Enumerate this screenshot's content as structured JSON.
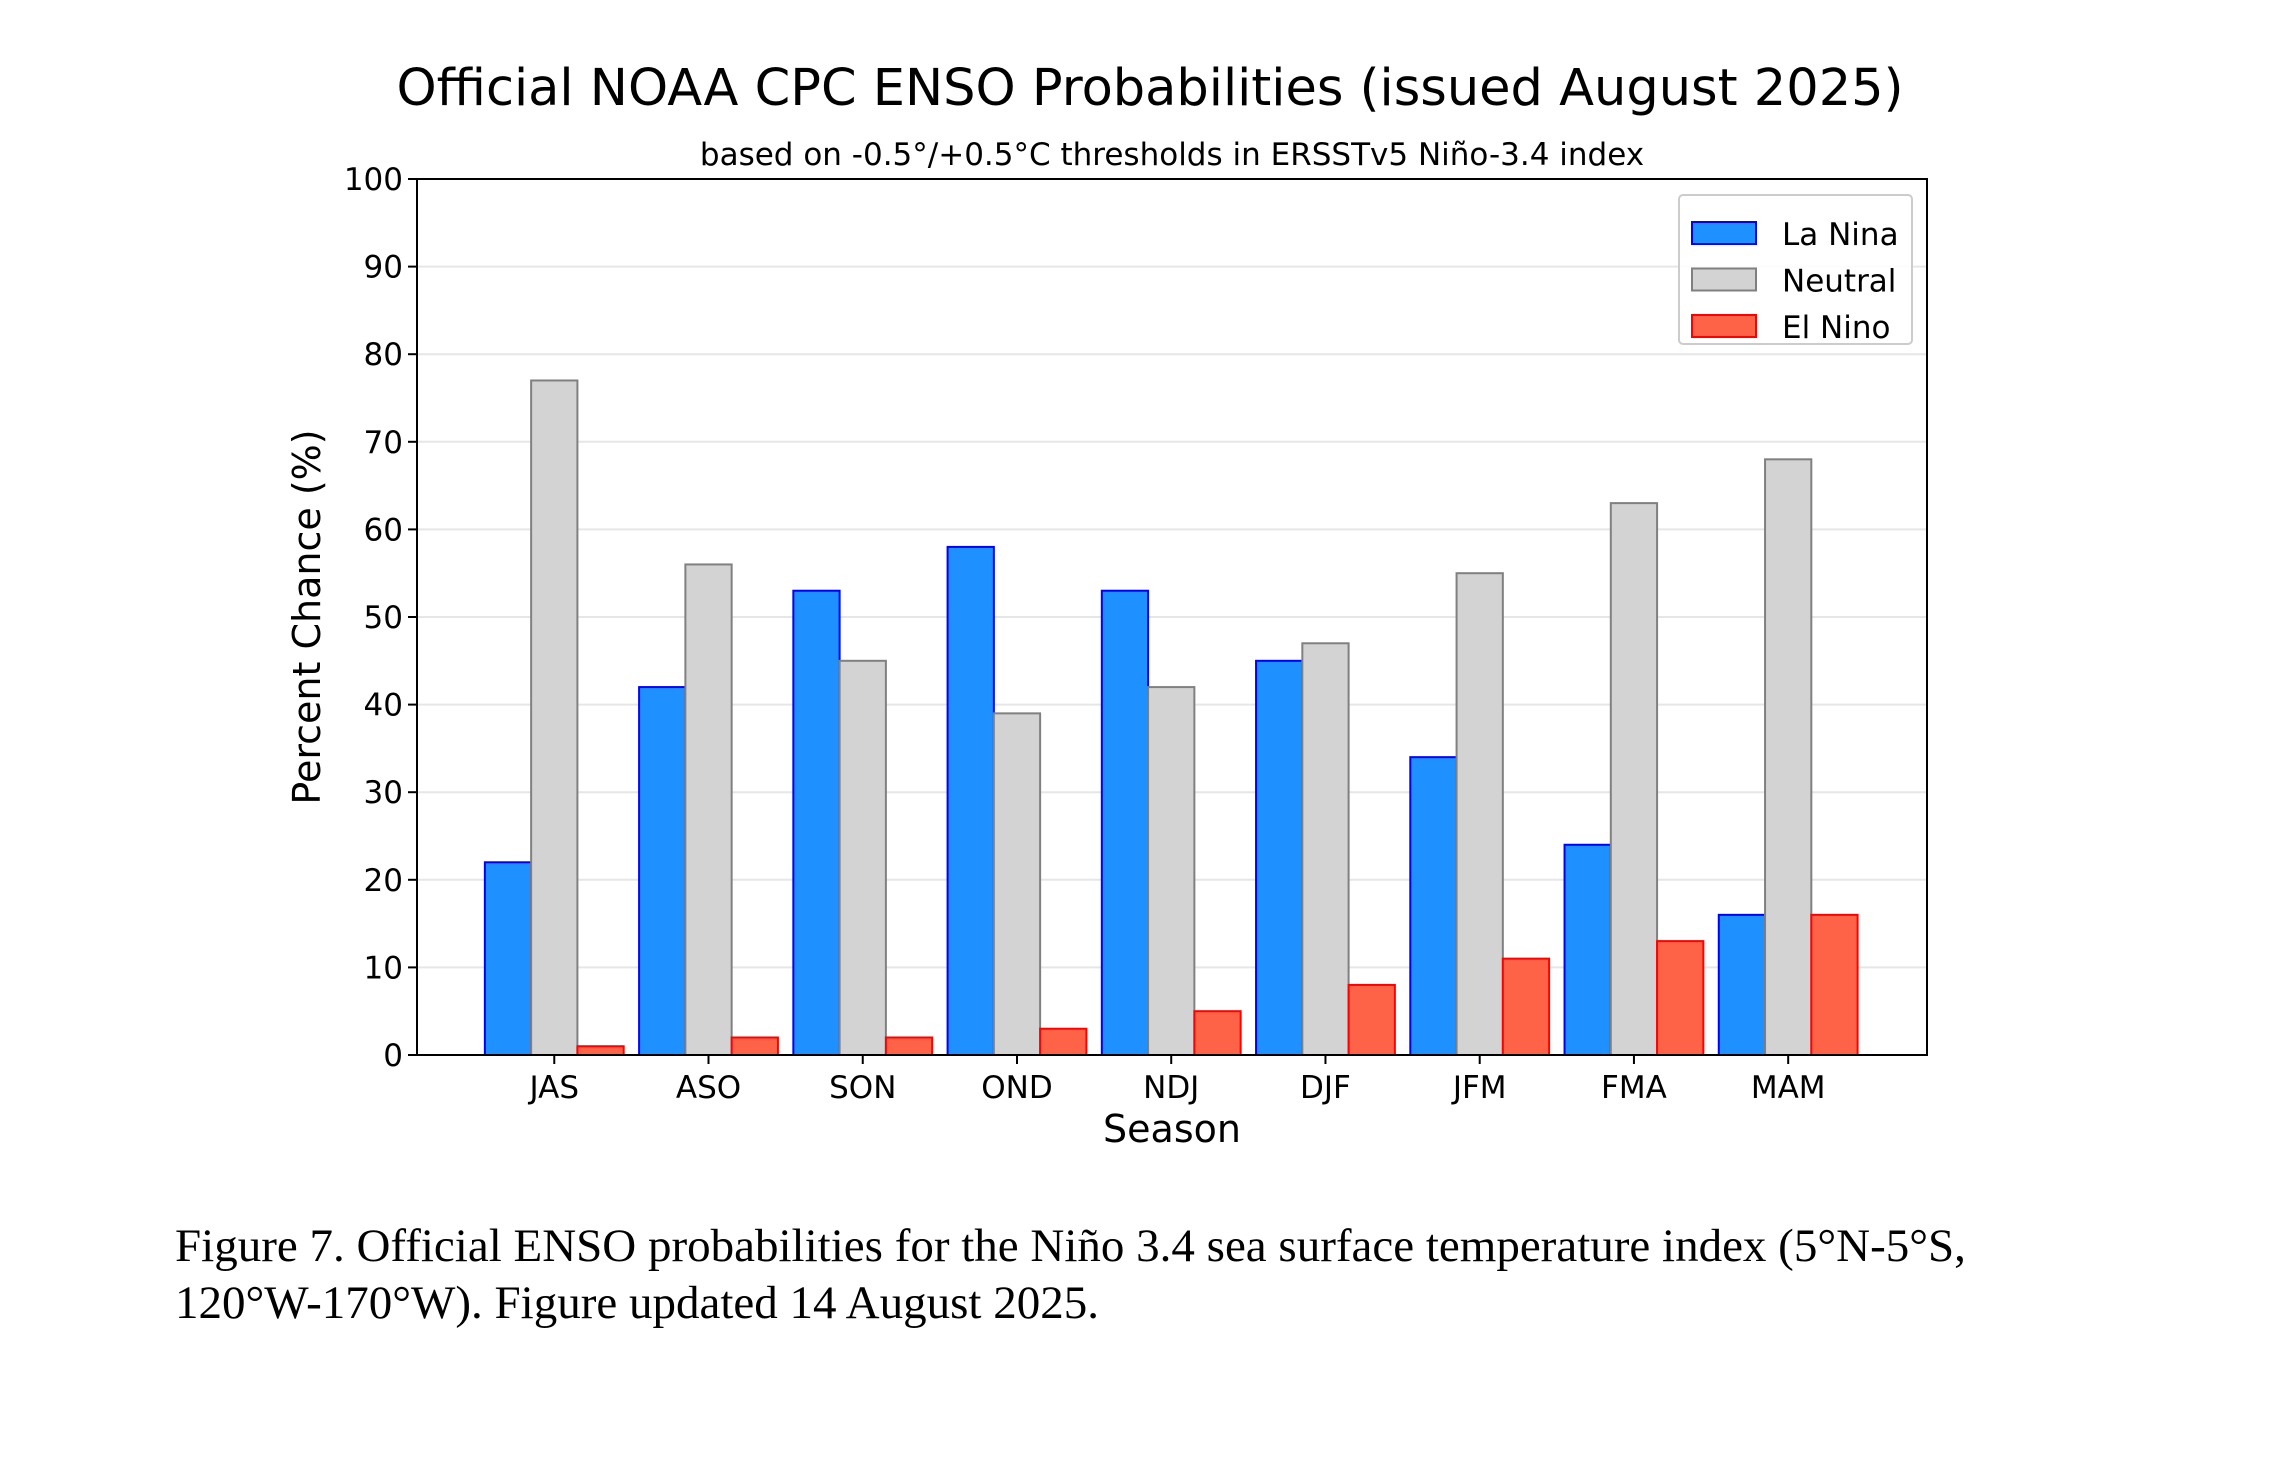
{
  "chart_data": {
    "type": "bar",
    "title": "Official NOAA CPC ENSO Probabilities (issued August 2025)",
    "subtitle": "based on -0.5°/+0.5°C thresholds in ERSSTv5 Niño-3.4 index",
    "xlabel": "Season",
    "ylabel": "Percent Chance (%)",
    "ylim": [
      0,
      100
    ],
    "yticks": [
      0,
      10,
      20,
      30,
      40,
      50,
      60,
      70,
      80,
      90,
      100
    ],
    "grid": "horizontal",
    "legend": "top-right",
    "categories": [
      "JAS",
      "ASO",
      "SON",
      "OND",
      "NDJ",
      "DJF",
      "JFM",
      "FMA",
      "MAM"
    ],
    "series": [
      {
        "name": "La Nina",
        "color": "#1e90ff",
        "edge": "#0000ff",
        "values": [
          22,
          42,
          53,
          58,
          53,
          45,
          34,
          24,
          16
        ]
      },
      {
        "name": "Neutral",
        "color": "#d3d3d3",
        "edge": "#808080",
        "values": [
          77,
          56,
          45,
          39,
          42,
          47,
          55,
          63,
          68
        ]
      },
      {
        "name": "El Nino",
        "color": "#ff6347",
        "edge": "#ff0000",
        "values": [
          1,
          2,
          2,
          3,
          5,
          8,
          11,
          13,
          16
        ]
      }
    ]
  },
  "caption": {
    "line1": "Figure 7. Official ENSO probabilities for the Niño 3.4 sea surface temperature index (5°N-5°S,",
    "line2": "120°W-170°W). Figure updated 14 August 2025."
  }
}
